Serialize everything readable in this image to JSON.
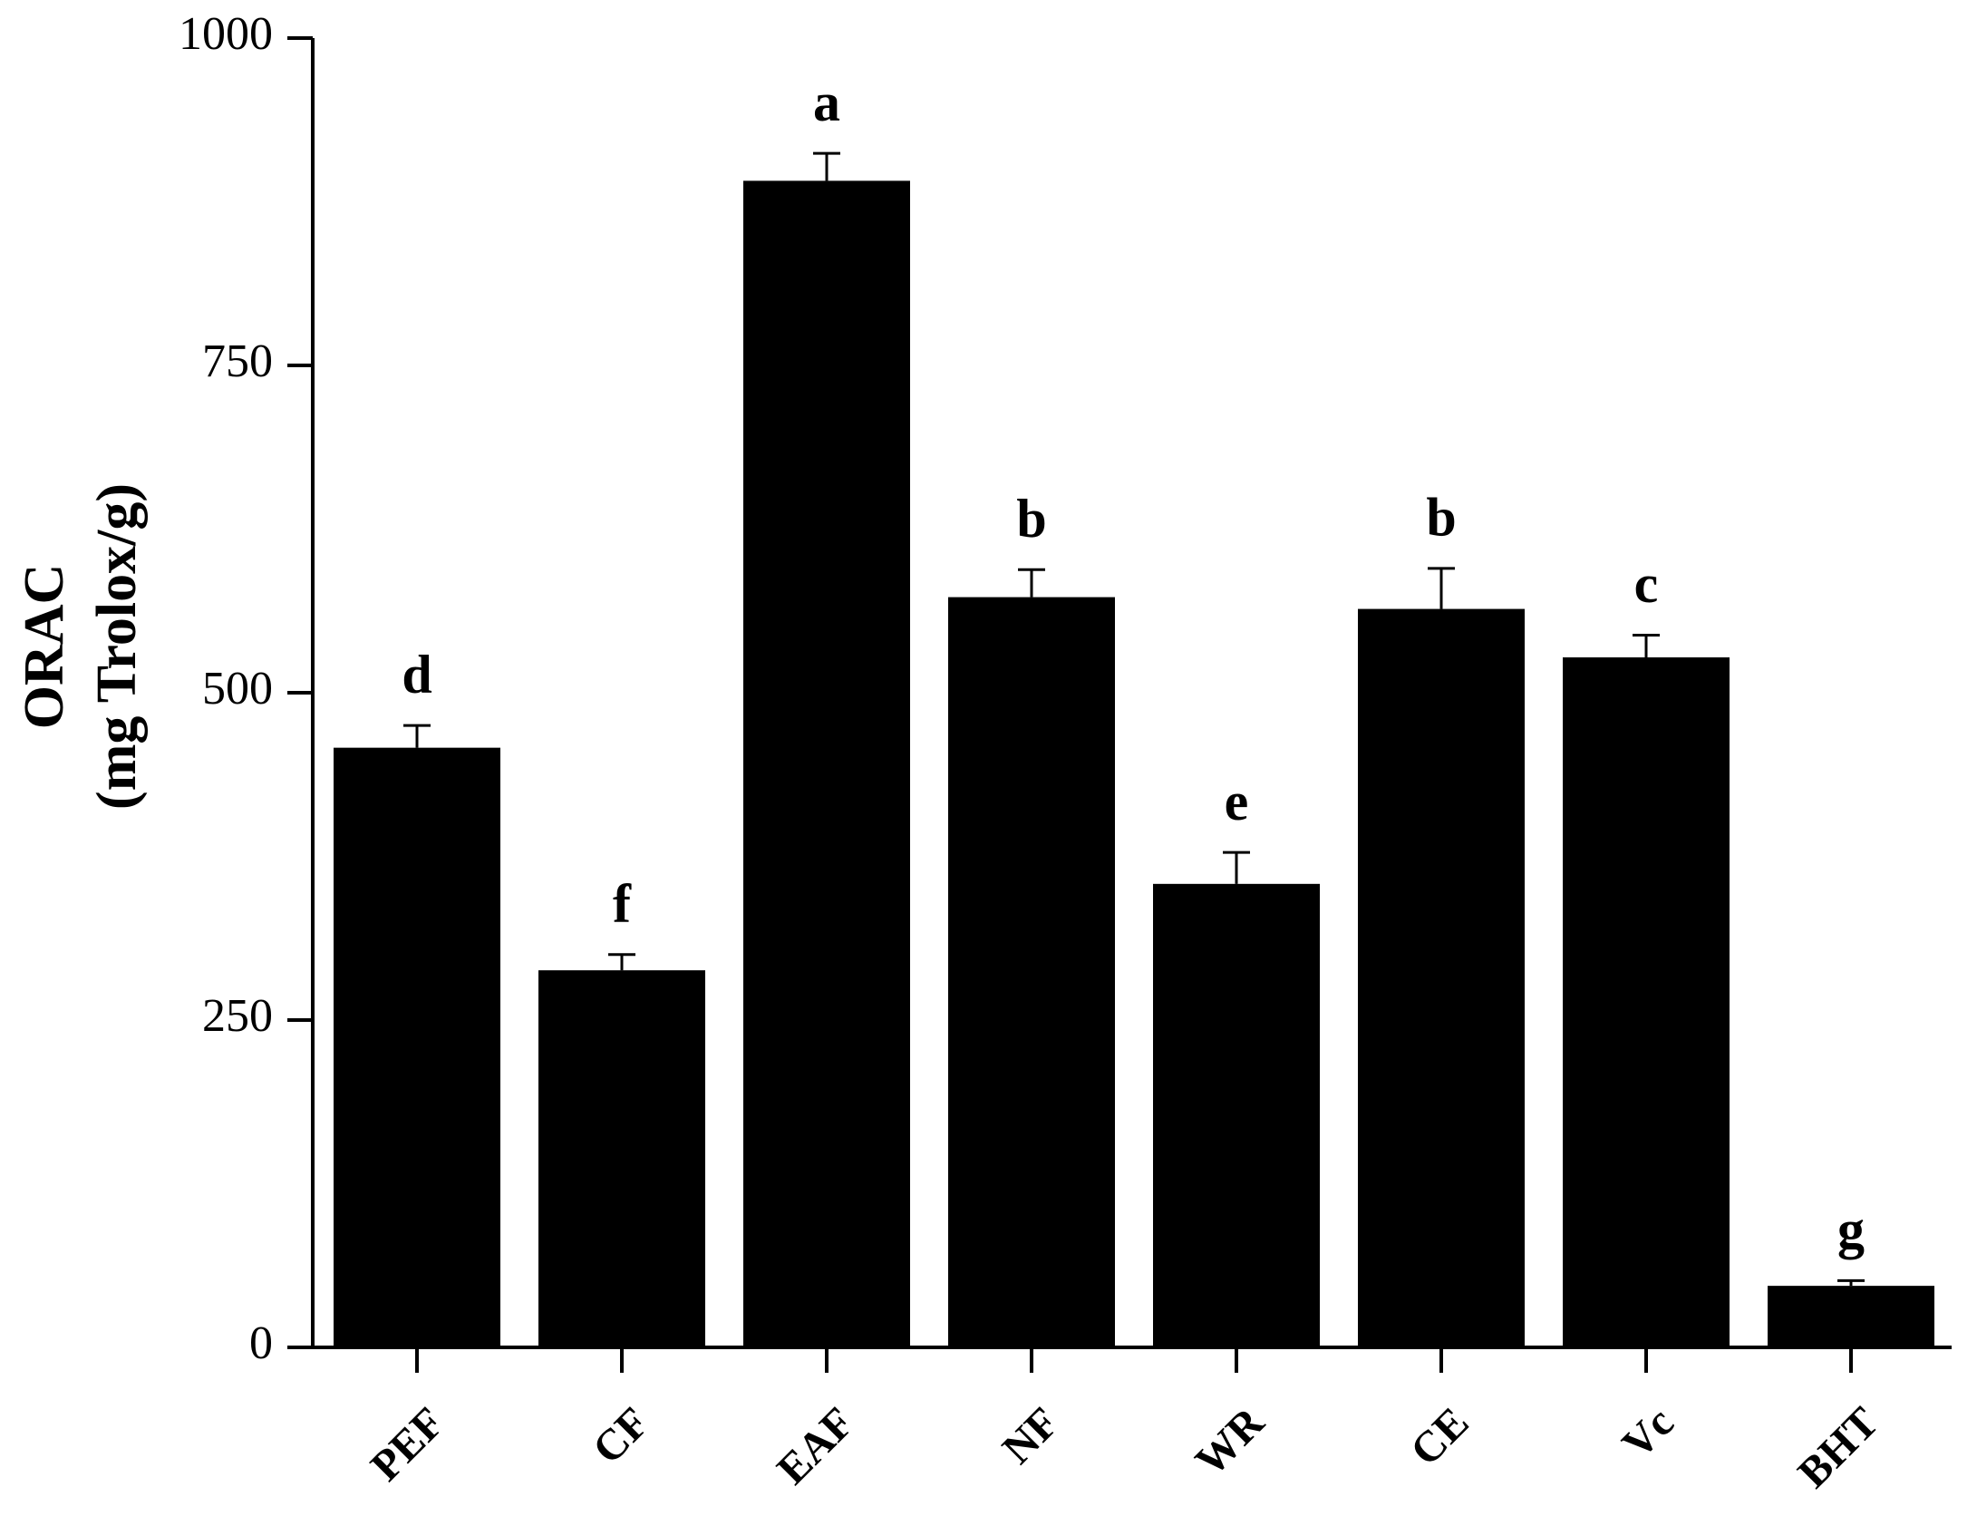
{
  "chart_data": {
    "type": "bar",
    "ylabel": [
      "ORAC",
      "(mg Trolox/g)"
    ],
    "categories": [
      "PEF",
      "CF",
      "EAF",
      "NF",
      "WR",
      "CE",
      "Vc",
      "BHT"
    ],
    "values": [
      458,
      288,
      891,
      573,
      354,
      564,
      527,
      47
    ],
    "errors": [
      17,
      12,
      21,
      21,
      24,
      31,
      17,
      4
    ],
    "letters": [
      "d",
      "f",
      "a",
      "b",
      "e",
      "b",
      "c",
      "g"
    ],
    "color": "#000000",
    "ylim": [
      0,
      1000
    ],
    "yticks": [
      0,
      250,
      500,
      750,
      1000
    ],
    "grid": false
  }
}
